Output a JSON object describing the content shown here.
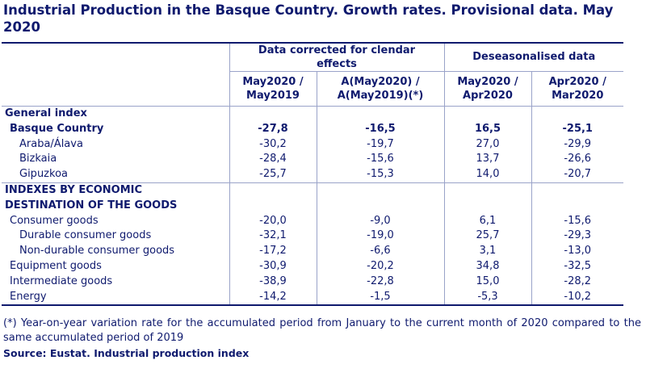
{
  "title": "Industrial Production in the Basque Country. Growth rates. Provisional data. May 2020",
  "headers": {
    "group1": "Data corrected for clendar effects",
    "group2": "Deseasonalised data",
    "col1": "May2020 / May2019",
    "col2": "A(May2020) / A(May2019)(*)",
    "col3": "May2020 / Apr2020",
    "col4": "Apr2020 / Mar2020"
  },
  "sections": {
    "general": "General index",
    "indexes_line1": "INDEXES BY ECONOMIC",
    "indexes_line2": "DESTINATION OF THE GOODS"
  },
  "rows": [
    {
      "label": "Basque Country",
      "v1": "-27,8",
      "v2": "-16,5",
      "v3": "16,5",
      "v4": "-25,1"
    },
    {
      "label": "Araba/Álava",
      "v1": "-30,2",
      "v2": "-19,7",
      "v3": "27,0",
      "v4": "-29,9"
    },
    {
      "label": "Bizkaia",
      "v1": "-28,4",
      "v2": "-15,6",
      "v3": "13,7",
      "v4": "-26,6"
    },
    {
      "label": "Gipuzkoa",
      "v1": "-25,7",
      "v2": "-15,3",
      "v3": "14,0",
      "v4": "-20,7"
    },
    {
      "label": "Consumer goods",
      "v1": "-20,0",
      "v2": "-9,0",
      "v3": "6,1",
      "v4": "-15,6"
    },
    {
      "label": "Durable consumer goods",
      "v1": "-32,1",
      "v2": "-19,0",
      "v3": "25,7",
      "v4": "-29,3"
    },
    {
      "label": "Non-durable consumer goods",
      "v1": "-17,2",
      "v2": "-6,6",
      "v3": "3,1",
      "v4": "-13,0"
    },
    {
      "label": "Equipment goods",
      "v1": "-30,9",
      "v2": "-20,2",
      "v3": "34,8",
      "v4": "-32,5"
    },
    {
      "label": "Intermediate goods",
      "v1": "-38,9",
      "v2": "-22,8",
      "v3": "15,0",
      "v4": "-28,2"
    },
    {
      "label": "Energy",
      "v1": "-14,2",
      "v2": "-1,5",
      "v3": "-5,3",
      "v4": "-10,2"
    }
  ],
  "note": "(*) Year-on-year variation rate for the accumulated period from January to the current month of 2020 compared to the same accumulated period of 2019",
  "source": "Source: Eustat. Industrial production index"
}
